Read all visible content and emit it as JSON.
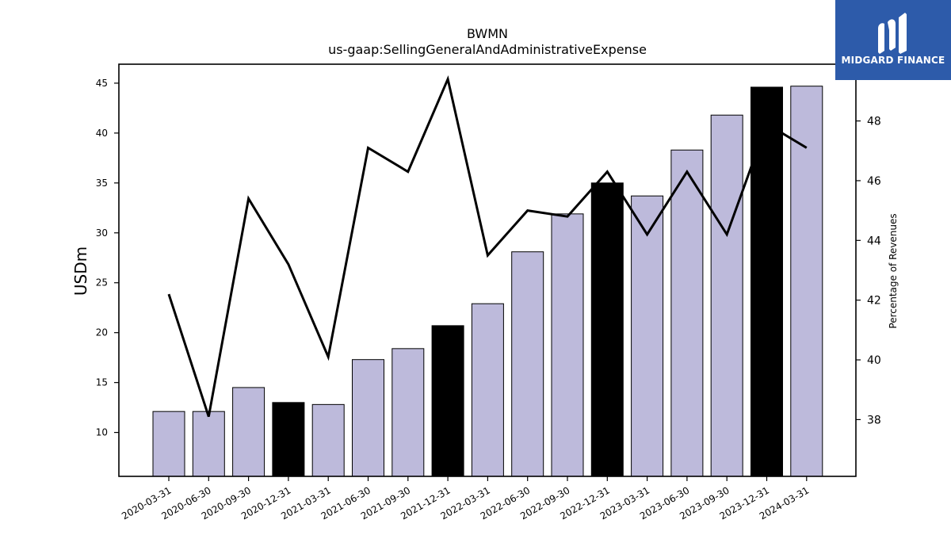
{
  "logo": {
    "text": "MIDGARD FINANCE",
    "background": "#2d5baa"
  },
  "chart_data": {
    "type": "bar",
    "title": "BWMN",
    "subtitle": "us-gaap:SellingGeneralAndAdministrativeExpense",
    "ylabel": "USDm",
    "y2label": "Percentage of Revenues",
    "ylim": [
      5.6,
      46.9
    ],
    "y2lim": [
      36.1,
      49.9
    ],
    "yticks": [
      10,
      15,
      20,
      25,
      30,
      35,
      40,
      45
    ],
    "y2ticks": [
      38,
      40,
      42,
      44,
      46,
      48
    ],
    "categories": [
      "2020-03-31",
      "2020-06-30",
      "2020-09-30",
      "2020-12-31",
      "2021-03-31",
      "2021-06-30",
      "2021-09-30",
      "2021-12-31",
      "2022-03-31",
      "2022-06-30",
      "2022-09-30",
      "2022-12-31",
      "2023-03-31",
      "2023-06-30",
      "2023-09-30",
      "2023-12-31",
      "2024-03-31"
    ],
    "series": [
      {
        "kind": "bar",
        "axis": "left",
        "values": [
          12.1,
          12.1,
          14.5,
          13.0,
          12.8,
          17.3,
          18.4,
          20.7,
          22.9,
          28.1,
          31.9,
          35.0,
          33.7,
          38.3,
          41.8,
          44.6,
          44.7
        ],
        "colors": [
          "#bdbadb",
          "#bdbadb",
          "#bdbadb",
          "#000000",
          "#bdbadb",
          "#bdbadb",
          "#bdbadb",
          "#000000",
          "#bdbadb",
          "#bdbadb",
          "#bdbadb",
          "#000000",
          "#bdbadb",
          "#bdbadb",
          "#bdbadb",
          "#000000",
          "#bdbadb"
        ]
      },
      {
        "kind": "line",
        "axis": "right",
        "values": [
          42.2,
          38.1,
          45.4,
          43.2,
          40.1,
          47.1,
          46.3,
          49.4,
          43.5,
          45.0,
          44.8,
          46.3,
          44.2,
          46.3,
          44.2,
          47.9,
          47.1
        ],
        "color": "#000000"
      }
    ],
    "grid": false,
    "legend": "none"
  }
}
